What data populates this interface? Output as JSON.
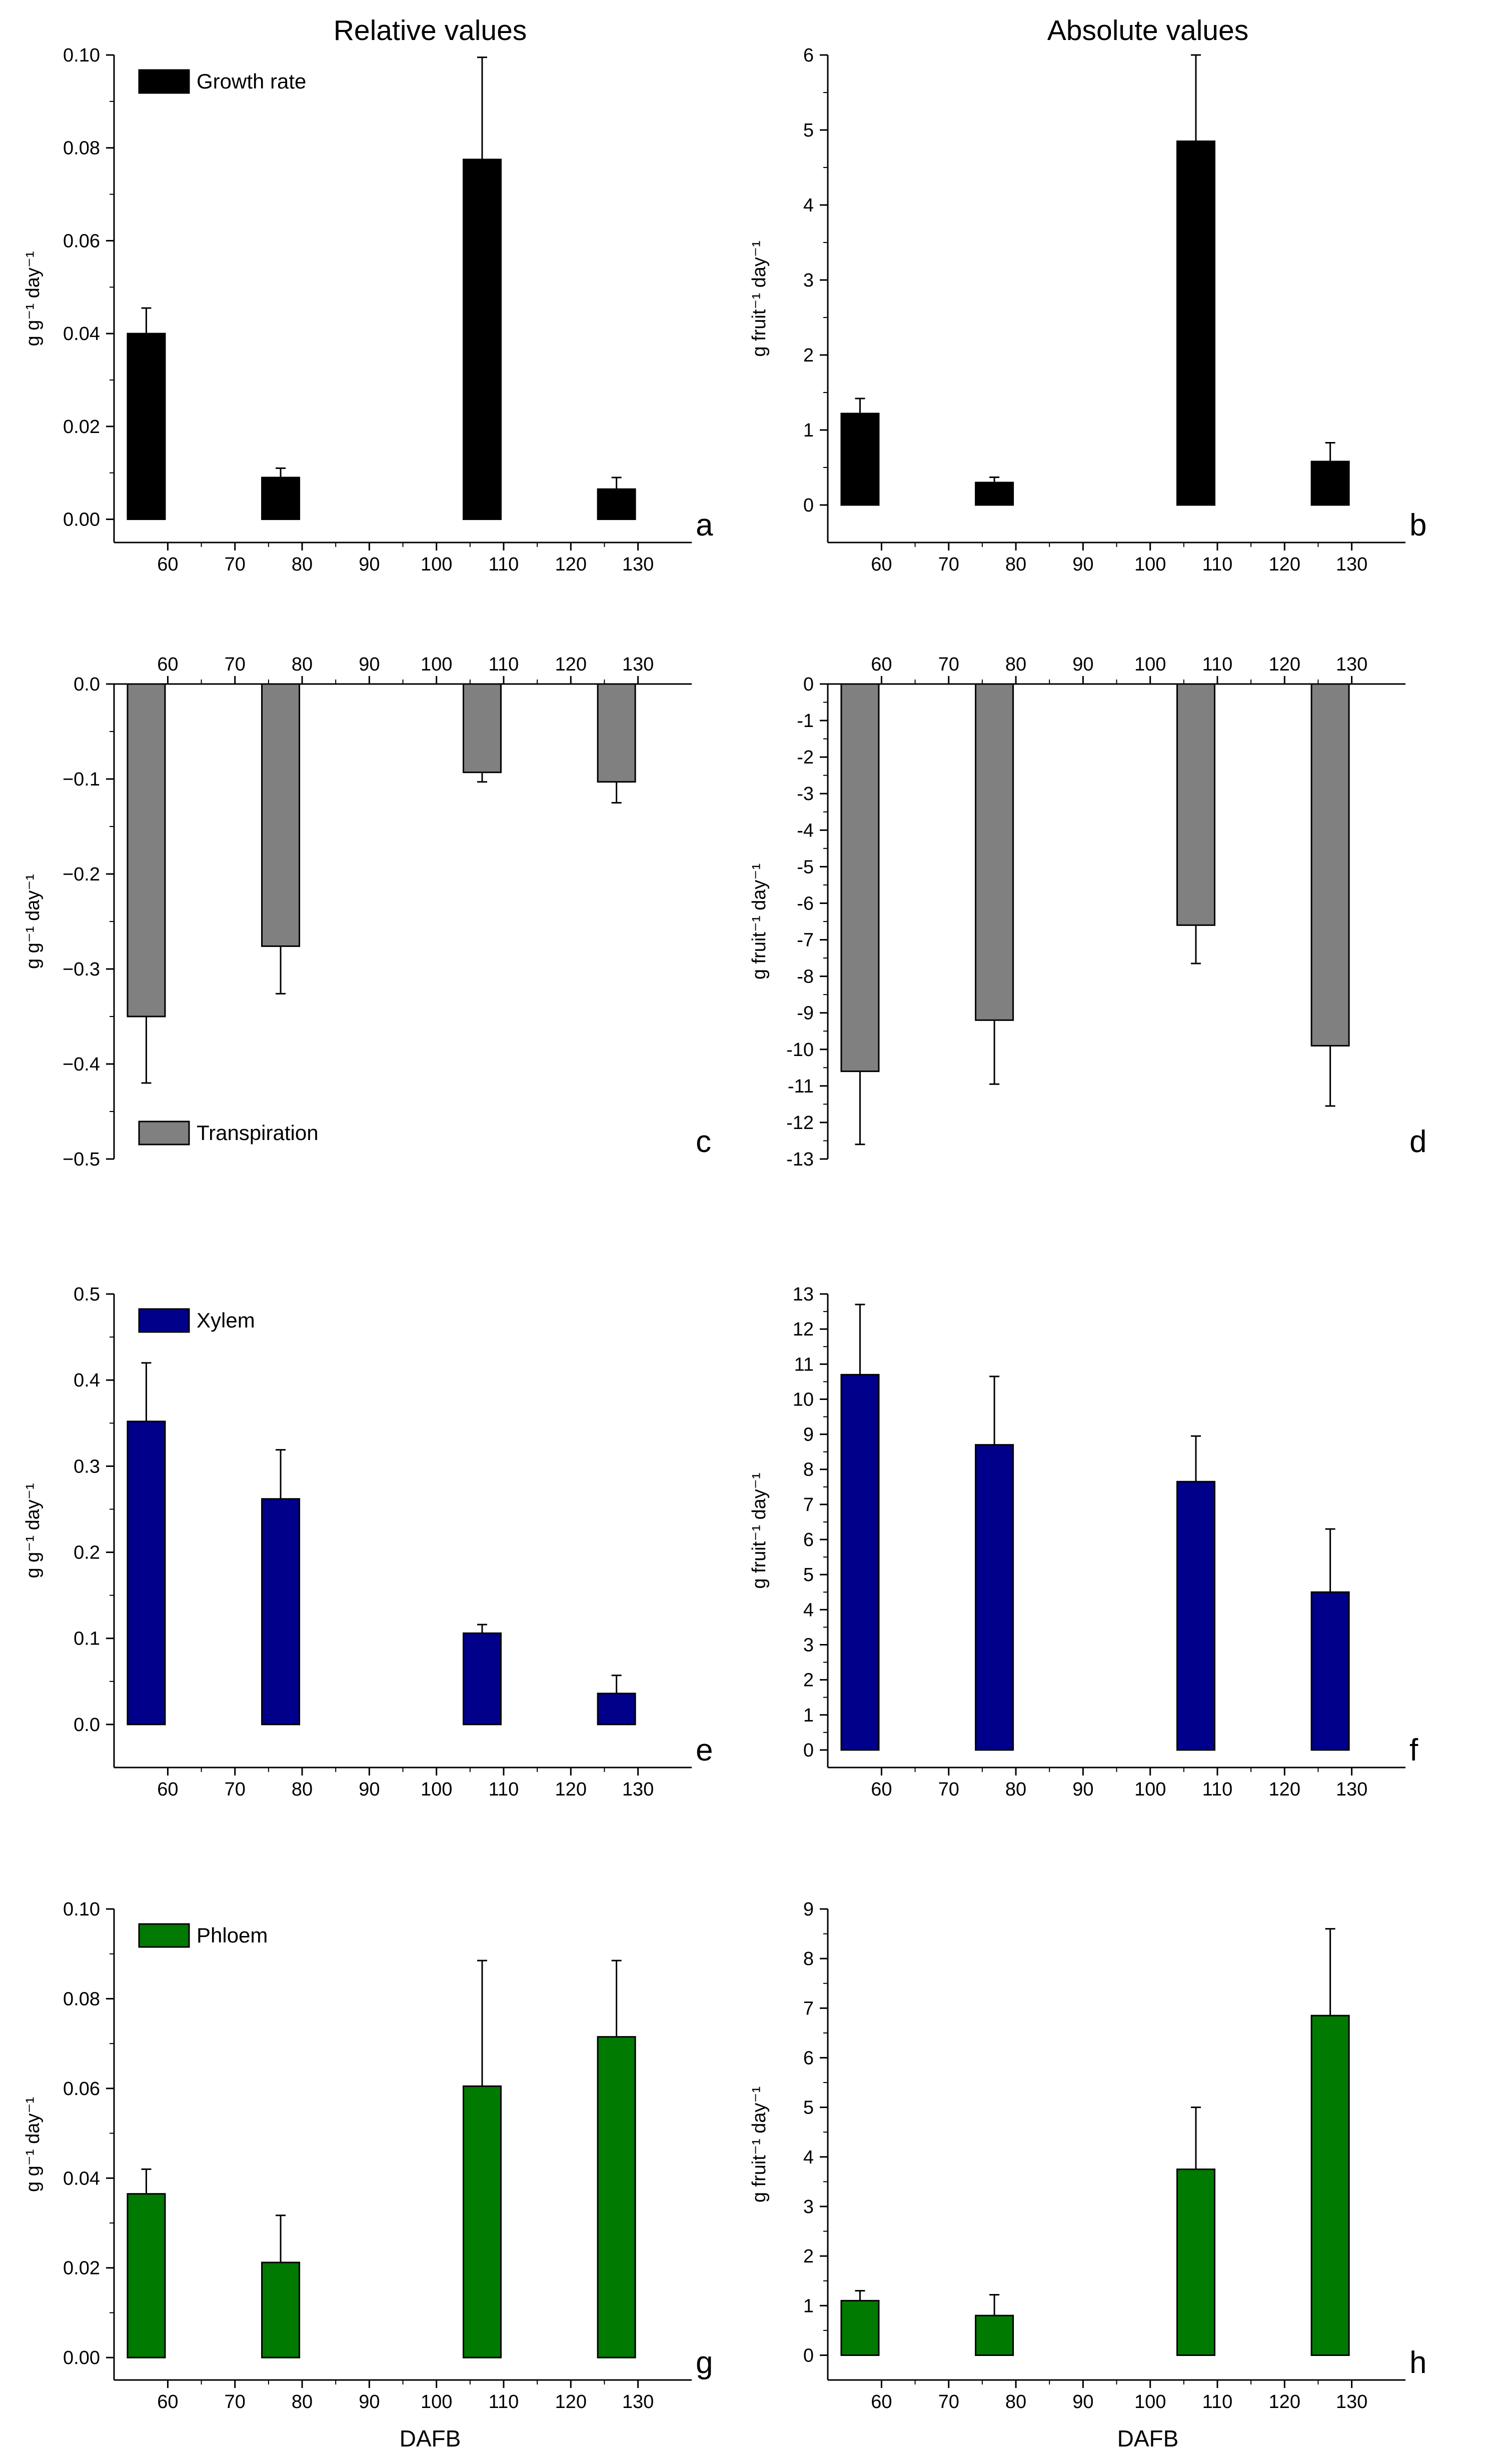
{
  "column_titles": {
    "left": "Relative values",
    "right": "Absolute values"
  },
  "x_axis_label": "DAFB",
  "chart_data": [
    {
      "id": "a",
      "type": "bar",
      "panel_letter": "a",
      "legend": "Growth rate",
      "legend_position": "top-left",
      "ylabel": "g g⁻¹ day⁻¹",
      "categories": [
        60,
        80,
        110,
        130
      ],
      "values": [
        0.04,
        0.009,
        0.0775,
        0.0065
      ],
      "errors": [
        0.0055,
        0.002,
        0.022,
        0.0025
      ],
      "ylim": [
        -0.005,
        0.1
      ],
      "yticks": [
        0.0,
        0.02,
        0.04,
        0.06,
        0.08,
        0.1
      ],
      "ytick_labels": [
        "0.00",
        "0.02",
        "0.04",
        "0.06",
        "0.08",
        "0.10"
      ],
      "xlim": [
        52,
        138
      ],
      "xticks": [
        60,
        70,
        80,
        90,
        100,
        110,
        120,
        130
      ],
      "xtick_labels": [
        "60",
        "70",
        "80",
        "90",
        "100",
        "110",
        "120",
        "130"
      ],
      "xaxis_position": "bottom",
      "color": "#000000"
    },
    {
      "id": "b",
      "type": "bar",
      "panel_letter": "b",
      "legend": "",
      "legend_position": "",
      "ylabel": "g fruit⁻¹ day⁻¹",
      "categories": [
        60,
        80,
        110,
        130
      ],
      "values": [
        1.22,
        0.3,
        4.85,
        0.58
      ],
      "errors": [
        0.2,
        0.07,
        1.15,
        0.25
      ],
      "ylim": [
        -0.5,
        6
      ],
      "yticks": [
        0,
        1,
        2,
        3,
        4,
        5,
        6
      ],
      "ytick_labels": [
        "0",
        "1",
        "2",
        "3",
        "4",
        "5",
        "6"
      ],
      "xlim": [
        52,
        138
      ],
      "xticks": [
        60,
        70,
        80,
        90,
        100,
        110,
        120,
        130
      ],
      "xtick_labels": [
        "60",
        "70",
        "80",
        "90",
        "100",
        "110",
        "120",
        "130"
      ],
      "xaxis_position": "bottom",
      "color": "#000000"
    },
    {
      "id": "c",
      "type": "bar",
      "panel_letter": "c",
      "legend": "Transpiration",
      "legend_position": "bottom-left",
      "ylabel": "g g⁻¹ day⁻¹",
      "categories": [
        60,
        80,
        110,
        130
      ],
      "values": [
        -0.35,
        -0.276,
        -0.093,
        -0.103
      ],
      "errors": [
        0.07,
        0.05,
        0.01,
        0.022
      ],
      "ylim": [
        -0.5,
        0.0
      ],
      "yticks": [
        0.0,
        -0.1,
        -0.2,
        -0.3,
        -0.4,
        -0.5
      ],
      "ytick_labels": [
        "0.0",
        "−0.1",
        "−0.2",
        "−0.3",
        "−0.4",
        "−0.5"
      ],
      "xlim": [
        52,
        138
      ],
      "xticks": [
        60,
        70,
        80,
        90,
        100,
        110,
        120,
        130
      ],
      "xtick_labels": [
        "60",
        "70",
        "80",
        "90",
        "100",
        "110",
        "120",
        "130"
      ],
      "xaxis_position": "top",
      "color": "#808080"
    },
    {
      "id": "d",
      "type": "bar",
      "panel_letter": "d",
      "legend": "",
      "legend_position": "",
      "ylabel": "g fruit⁻¹ day⁻¹",
      "categories": [
        60,
        80,
        110,
        130
      ],
      "values": [
        -10.6,
        -9.2,
        -6.6,
        -9.9
      ],
      "errors": [
        2.0,
        1.75,
        1.05,
        1.65
      ],
      "ylim": [
        -13,
        0
      ],
      "yticks": [
        0,
        -1,
        -2,
        -3,
        -4,
        -5,
        -6,
        -7,
        -8,
        -9,
        -10,
        -11,
        -12,
        -13
      ],
      "ytick_labels": [
        "0",
        "-1",
        "-2",
        "-3",
        "-4",
        "-5",
        "-6",
        "-7",
        "-8",
        "-9",
        "-10",
        "-11",
        "-12",
        "-13"
      ],
      "xlim": [
        52,
        138
      ],
      "xticks": [
        60,
        70,
        80,
        90,
        100,
        110,
        120,
        130
      ],
      "xtick_labels": [
        "60",
        "70",
        "80",
        "90",
        "100",
        "110",
        "120",
        "130"
      ],
      "xaxis_position": "top",
      "color": "#808080"
    },
    {
      "id": "e",
      "type": "bar",
      "panel_letter": "e",
      "legend": "Xylem",
      "legend_position": "top-left",
      "ylabel": "g g⁻¹ day⁻¹",
      "categories": [
        60,
        80,
        110,
        130
      ],
      "values": [
        0.352,
        0.262,
        0.106,
        0.036
      ],
      "errors": [
        0.068,
        0.057,
        0.01,
        0.021
      ],
      "ylim": [
        -0.05,
        0.5
      ],
      "yticks": [
        0.0,
        0.1,
        0.2,
        0.3,
        0.4,
        0.5
      ],
      "ytick_labels": [
        "0.0",
        "0.1",
        "0.2",
        "0.3",
        "0.4",
        "0.5"
      ],
      "xlim": [
        52,
        138
      ],
      "xticks": [
        60,
        70,
        80,
        90,
        100,
        110,
        120,
        130
      ],
      "xtick_labels": [
        "60",
        "70",
        "80",
        "90",
        "100",
        "110",
        "120",
        "130"
      ],
      "xaxis_position": "bottom",
      "color": "#00008B"
    },
    {
      "id": "f",
      "type": "bar",
      "panel_letter": "f",
      "legend": "",
      "legend_position": "",
      "ylabel": "g fruit⁻¹ day⁻¹",
      "categories": [
        60,
        80,
        110,
        130
      ],
      "values": [
        10.7,
        8.7,
        7.65,
        4.5
      ],
      "errors": [
        2.0,
        1.95,
        1.3,
        1.8
      ],
      "ylim": [
        -0.5,
        13
      ],
      "yticks": [
        0,
        1,
        2,
        3,
        4,
        5,
        6,
        7,
        8,
        9,
        10,
        11,
        12,
        13
      ],
      "ytick_labels": [
        "0",
        "1",
        "2",
        "3",
        "4",
        "5",
        "6",
        "7",
        "8",
        "9",
        "10",
        "11",
        "12",
        "13"
      ],
      "xlim": [
        52,
        138
      ],
      "xticks": [
        60,
        70,
        80,
        90,
        100,
        110,
        120,
        130
      ],
      "xtick_labels": [
        "60",
        "70",
        "80",
        "90",
        "100",
        "110",
        "120",
        "130"
      ],
      "xaxis_position": "bottom",
      "color": "#00008B"
    },
    {
      "id": "g",
      "type": "bar",
      "panel_letter": "g",
      "legend": "Phloem",
      "legend_position": "top-left",
      "ylabel": "g g⁻¹ day⁻¹",
      "categories": [
        60,
        80,
        110,
        130
      ],
      "values": [
        0.0365,
        0.0212,
        0.0605,
        0.0715
      ],
      "errors": [
        0.0055,
        0.0105,
        0.028,
        0.017
      ],
      "ylim": [
        -0.005,
        0.1
      ],
      "yticks": [
        0.0,
        0.02,
        0.04,
        0.06,
        0.08,
        0.1
      ],
      "ytick_labels": [
        "0.00",
        "0.02",
        "0.04",
        "0.06",
        "0.08",
        "0.10"
      ],
      "xlim": [
        52,
        138
      ],
      "xticks": [
        60,
        70,
        80,
        90,
        100,
        110,
        120,
        130
      ],
      "xtick_labels": [
        "60",
        "70",
        "80",
        "90",
        "100",
        "110",
        "120",
        "130"
      ],
      "xaxis_position": "bottom",
      "color": "#007A00"
    },
    {
      "id": "h",
      "type": "bar",
      "panel_letter": "h",
      "legend": "",
      "legend_position": "",
      "ylabel": "g fruit⁻¹ day⁻¹",
      "categories": [
        60,
        80,
        110,
        130
      ],
      "values": [
        1.1,
        0.8,
        3.75,
        6.85
      ],
      "errors": [
        0.2,
        0.42,
        1.25,
        1.75
      ],
      "ylim": [
        -0.5,
        9
      ],
      "yticks": [
        0,
        1,
        2,
        3,
        4,
        5,
        6,
        7,
        8,
        9
      ],
      "ytick_labels": [
        "0",
        "1",
        "2",
        "3",
        "4",
        "5",
        "6",
        "7",
        "8",
        "9"
      ],
      "xlim": [
        52,
        138
      ],
      "xticks": [
        60,
        70,
        80,
        90,
        100,
        110,
        120,
        130
      ],
      "xtick_labels": [
        "60",
        "70",
        "80",
        "90",
        "100",
        "110",
        "120",
        "130"
      ],
      "xaxis_position": "bottom",
      "color": "#007A00"
    }
  ]
}
